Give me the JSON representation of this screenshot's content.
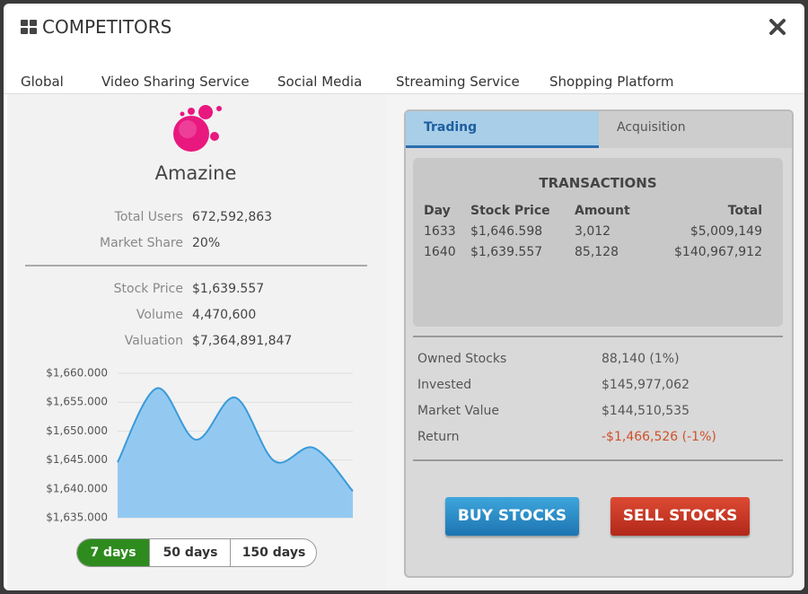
{
  "header": {
    "title": "COMPETITORS",
    "tabs": [
      "Global",
      "Video Sharing Service",
      "Social Media",
      "Streaming Service",
      "Shopping Platform"
    ]
  },
  "company": {
    "name": "Amazine",
    "stats": [
      {
        "label": "Total Users",
        "value": "672,592,863"
      },
      {
        "label": "Market Share",
        "value": "20%"
      }
    ],
    "stock_stats": [
      {
        "label": "Stock Price",
        "value": "$1,639.557"
      },
      {
        "label": "Volume",
        "value": "4,470,600"
      },
      {
        "label": "Valuation",
        "value": "$7,364,891,847"
      }
    ]
  },
  "chart_data": {
    "type": "area",
    "values": [
      1644.6,
      1657.4,
      1648.5,
      1655.8,
      1644.8,
      1647.1,
      1639.6
    ],
    "color": "#3a9ad9",
    "fill": "#93c9f1",
    "ylim": [
      1635,
      1660
    ],
    "yticks": [
      {
        "value": 1635,
        "label": "$1,635.000"
      },
      {
        "value": 1640,
        "label": "$1,640.000"
      },
      {
        "value": 1645,
        "label": "$1,645.000"
      },
      {
        "value": 1650,
        "label": "$1,650.000"
      },
      {
        "value": 1655,
        "label": "$1,655.000"
      },
      {
        "value": 1660,
        "label": "$1,660.000"
      }
    ],
    "grid": true
  },
  "time_ranges": [
    "7 days",
    "50 days",
    "150 days"
  ],
  "trading": {
    "tabs": [
      "Trading",
      "Acquisition"
    ],
    "transactions": {
      "title": "TRANSACTIONS",
      "columns": [
        "Day",
        "Stock Price",
        "Amount",
        "Total"
      ],
      "rows": [
        [
          "1633",
          "$1,646.598",
          "3,012",
          "$5,009,149"
        ],
        [
          "1640",
          "$1,639.557",
          "85,128",
          "$140,967,912"
        ]
      ]
    },
    "summary": [
      {
        "label": "Owned Stocks",
        "value": "88,140 (1%)"
      },
      {
        "label": "Invested",
        "value": "$145,977,062"
      },
      {
        "label": "Market Value",
        "value": "$144,510,535"
      },
      {
        "label": "Return",
        "value": "-$1,466,526 (-1%)"
      }
    ],
    "buttons": [
      "BUY STOCKS",
      "SELL STOCKS"
    ]
  }
}
